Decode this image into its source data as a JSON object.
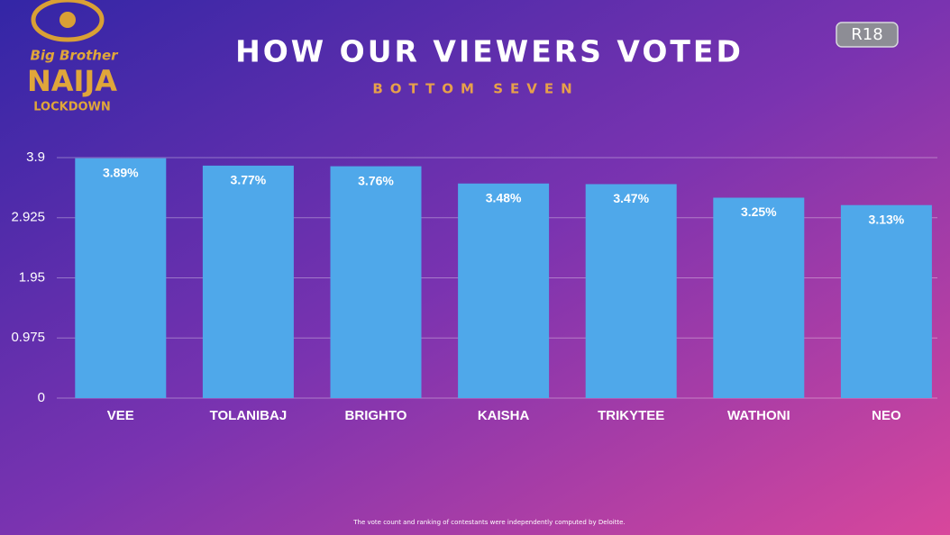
{
  "logo_text": [
    "Big Brother",
    "NAIJA",
    "LOCKDOWN"
  ],
  "badge": "R18",
  "chart_data": {
    "type": "bar",
    "title": "HOW OUR VIEWERS VOTED",
    "subtitle": "BOTTOM SEVEN",
    "footnote": "The vote count and ranking of contestants were independently computed by Deloitte.",
    "categories": [
      "VEE",
      "TOLANIBAJ",
      "BRIGHTO",
      "KAISHA",
      "TRIKYTEE",
      "WATHONI",
      "NEO"
    ],
    "values": [
      3.89,
      3.77,
      3.76,
      3.48,
      3.47,
      3.25,
      3.13
    ],
    "value_labels": [
      "3.89%",
      "3.77%",
      "3.76%",
      "3.48%",
      "3.47%",
      "3.25%",
      "3.13%"
    ],
    "color": "#4fa8ea",
    "ylim": [
      0,
      3.9
    ],
    "yticks": [
      0,
      0.975,
      1.95,
      2.925,
      3.9
    ],
    "grid": true
  }
}
